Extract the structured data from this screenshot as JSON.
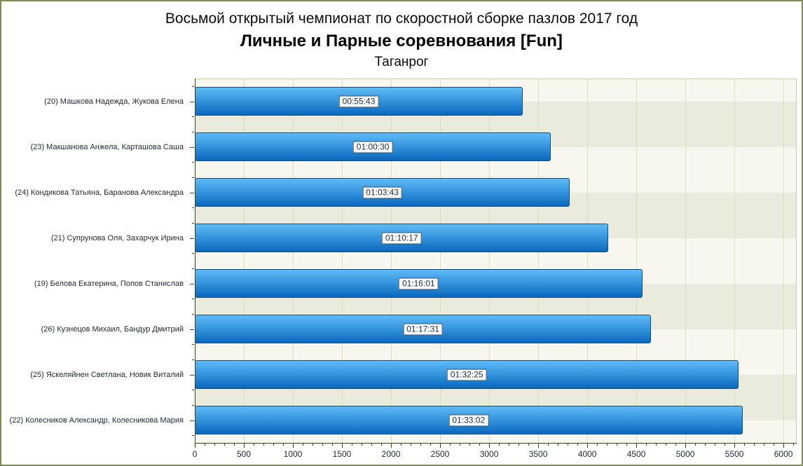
{
  "title": {
    "line1": "Восьмой открытый чемпионат по скоростной сборке пазлов 2017 год",
    "line2": "Личные и Парные соревнования [Fun]",
    "line3": "Таганрог"
  },
  "chart_data": {
    "type": "bar",
    "orientation": "horizontal",
    "categories": [
      "(20) Машкова Надежда, Жукова Елена",
      "(23) Макшанова Анжела, Карташова Саша",
      "(24) Кондикова Татьяна, Баранова Александра",
      "(21) Супрунова Оля, Захарчук Ирина",
      "(19) Белова Екатерина, Попов Станислав",
      "(26) Кузнецов Михаил, Бандур Дмитрий",
      "(25) Яскеляйнен Светлана, Новик Виталий",
      "(22) Колесников Александр, Колесникова Мария"
    ],
    "values": [
      3343,
      3630,
      3823,
      4217,
      4561,
      4651,
      5545,
      5582
    ],
    "bar_labels": [
      "00:55:43",
      "01:00:30",
      "01:03:43",
      "01:10:17",
      "01:16:01",
      "01:17:31",
      "01:32:25",
      "01:33:02"
    ],
    "value_unit": "seconds",
    "xlabel": "",
    "ylabel": "",
    "xlim": [
      0,
      6135
    ],
    "x_tick_max": 6000,
    "x_tick_step": 500,
    "x_minor_step": 100,
    "grid": "vertical-major",
    "legend": "none",
    "colors": {
      "frame": "#7E8C55",
      "plot_border": "#C9CDA3",
      "axis": "#39451C",
      "band_light": "#F7F7F0",
      "band_dark": "#EBEBDD",
      "gridline": "#D9DCBE",
      "bar_top": "#60BAF7",
      "bar_mid": "#2E8FD9",
      "bar_bottom": "#0A68BE",
      "bar_border": "#1A4B7D",
      "value_box_border": "#30506E",
      "value_text": "#122C47",
      "category_text": "#1B2836",
      "x_tick_text": "#202B36"
    }
  }
}
